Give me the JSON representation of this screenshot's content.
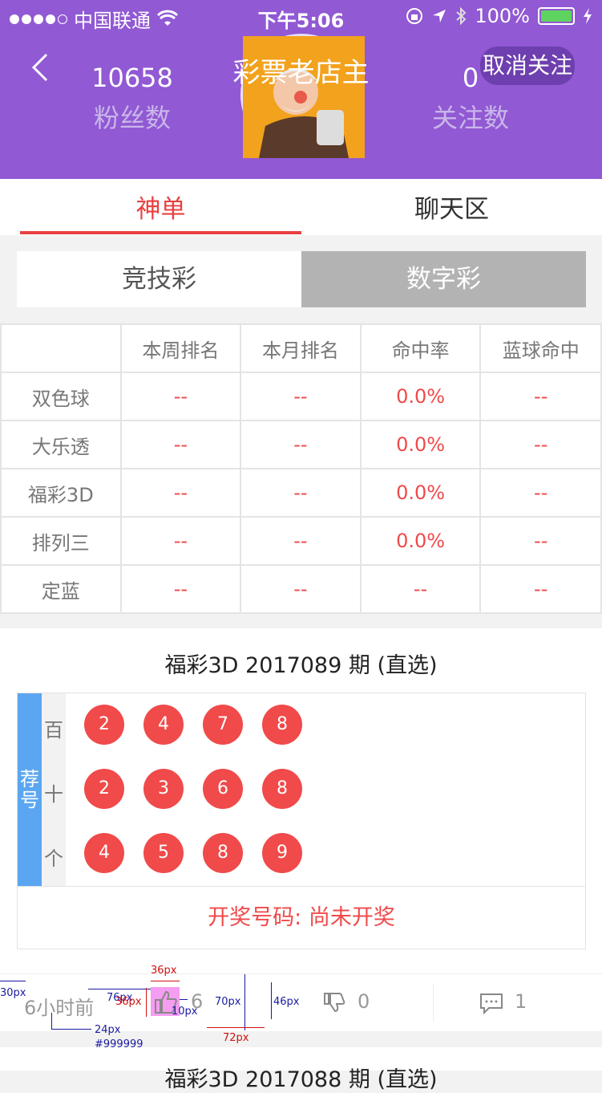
{
  "status_bar": {
    "carrier": "中国联通",
    "time": "下午5:06",
    "battery": "100%"
  },
  "header": {
    "title": "彩票老店主",
    "fans_count": "10658",
    "fans_label": "粉丝数",
    "follow_count": "0",
    "follow_label": "关注数",
    "unfollow_button": "取消关注"
  },
  "tabs": [
    {
      "label": "神单",
      "active": true
    },
    {
      "label": "聊天区",
      "active": false
    }
  ],
  "segment": [
    {
      "label": "竞技彩",
      "active": false
    },
    {
      "label": "数字彩",
      "active": true
    }
  ],
  "ranking_table": {
    "headers": [
      "",
      "本周排名",
      "本月排名",
      "命中率",
      "蓝球命中"
    ],
    "rows": [
      [
        "双色球",
        "--",
        "--",
        "0.0%",
        "--"
      ],
      [
        "大乐透",
        "--",
        "--",
        "0.0%",
        "--"
      ],
      [
        "福彩3D",
        "--",
        "--",
        "0.0%",
        "--"
      ],
      [
        "排列三",
        "--",
        "--",
        "0.0%",
        "--"
      ],
      [
        "定蓝",
        "--",
        "--",
        "--",
        "--"
      ]
    ]
  },
  "prediction_card": {
    "title": "福彩3D 2017089 期 (直选)",
    "rec_label_1": "荐",
    "rec_label_2": "号",
    "positions": [
      {
        "label": "百",
        "balls": [
          "2",
          "4",
          "7",
          "8"
        ]
      },
      {
        "label": "十",
        "balls": [
          "2",
          "3",
          "6",
          "8"
        ]
      },
      {
        "label": "个",
        "balls": [
          "4",
          "5",
          "8",
          "9"
        ]
      }
    ],
    "draw_result": "开奖号码: 尚未开奖"
  },
  "footer": {
    "time_ago": "6小时前",
    "likes": "6",
    "dislikes": "0",
    "comments": "1"
  },
  "annotations": {
    "a30": "30px",
    "a36": "36px",
    "a76": "76px",
    "a36b": "36px",
    "a10": "10px",
    "a70": "70px",
    "a46": "46px",
    "a72": "72px",
    "a24": "24px",
    "acolor": "#999999"
  },
  "next_card_title": "福彩3D 2017088 期 (直选)"
}
